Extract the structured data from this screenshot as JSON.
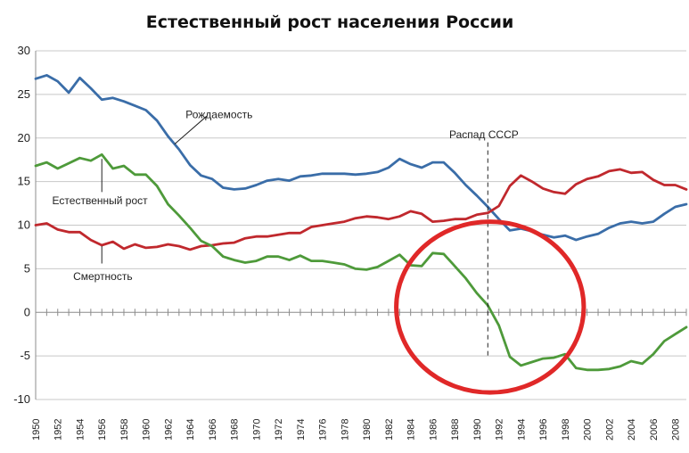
{
  "chart_data": {
    "type": "line",
    "title": "Естественный рост населения России",
    "xlabel": "",
    "ylabel": "",
    "ylim": [
      -10,
      30
    ],
    "yticks": [
      -10,
      -5,
      0,
      5,
      10,
      15,
      20,
      25,
      30
    ],
    "xlim": [
      1950,
      2009
    ],
    "xtick_labels": [
      "1950",
      "1952",
      "1954",
      "1956",
      "1958",
      "1960",
      "1962",
      "1964",
      "1966",
      "1968",
      "1970",
      "1972",
      "1974",
      "1976",
      "1978",
      "1980",
      "1982",
      "1984",
      "1986",
      "1988",
      "1990",
      "1992",
      "1994",
      "1996",
      "1998",
      "2000",
      "2002",
      "2004",
      "2006",
      "2008"
    ],
    "grid": "horizontal",
    "x": [
      1950,
      1951,
      1952,
      1953,
      1954,
      1955,
      1956,
      1957,
      1958,
      1959,
      1960,
      1961,
      1962,
      1963,
      1964,
      1965,
      1966,
      1967,
      1968,
      1969,
      1970,
      1971,
      1972,
      1973,
      1974,
      1975,
      1976,
      1977,
      1978,
      1979,
      1980,
      1981,
      1982,
      1983,
      1984,
      1985,
      1986,
      1987,
      1988,
      1989,
      1990,
      1991,
      1992,
      1993,
      1994,
      1995,
      1996,
      1997,
      1998,
      1999,
      2000,
      2001,
      2002,
      2003,
      2004,
      2005,
      2006,
      2007,
      2008,
      2009
    ],
    "series": [
      {
        "name": "Рождаемость",
        "color": "#3a6da8",
        "values": [
          26.8,
          27.2,
          26.5,
          25.2,
          26.9,
          25.7,
          24.4,
          24.6,
          24.2,
          23.7,
          23.2,
          22.0,
          20.2,
          18.7,
          16.9,
          15.7,
          15.3,
          14.3,
          14.1,
          14.2,
          14.6,
          15.1,
          15.3,
          15.1,
          15.6,
          15.7,
          15.9,
          15.9,
          15.9,
          15.8,
          15.9,
          16.1,
          16.6,
          17.6,
          17.0,
          16.6,
          17.2,
          17.2,
          16.0,
          14.6,
          13.4,
          12.1,
          10.7,
          9.4,
          9.6,
          9.3,
          8.9,
          8.6,
          8.8,
          8.3,
          8.7,
          9.0,
          9.7,
          10.2,
          10.4,
          10.2,
          10.4,
          11.3,
          12.1,
          12.4
        ]
      },
      {
        "name": "Смертность",
        "color": "#c0282d",
        "values": [
          10.0,
          10.2,
          9.5,
          9.2,
          9.2,
          8.3,
          7.7,
          8.1,
          7.3,
          7.8,
          7.4,
          7.5,
          7.8,
          7.6,
          7.2,
          7.6,
          7.7,
          7.9,
          8.0,
          8.5,
          8.7,
          8.7,
          8.9,
          9.1,
          9.1,
          9.8,
          10.0,
          10.2,
          10.4,
          10.8,
          11.0,
          10.9,
          10.7,
          11.0,
          11.6,
          11.3,
          10.4,
          10.5,
          10.7,
          10.7,
          11.2,
          11.4,
          12.2,
          14.5,
          15.7,
          15.0,
          14.2,
          13.8,
          13.6,
          14.7,
          15.3,
          15.6,
          16.2,
          16.4,
          16.0,
          16.1,
          15.2,
          14.6,
          14.6,
          14.1
        ]
      },
      {
        "name": "Естественный рост",
        "color": "#4e9a3a",
        "values": [
          16.8,
          17.2,
          16.5,
          17.1,
          17.7,
          17.4,
          18.1,
          16.5,
          16.8,
          15.8,
          15.8,
          14.5,
          12.4,
          11.1,
          9.7,
          8.2,
          7.6,
          6.4,
          6.0,
          5.7,
          5.9,
          6.4,
          6.4,
          6.0,
          6.5,
          5.9,
          5.9,
          5.7,
          5.5,
          5.0,
          4.9,
          5.2,
          5.9,
          6.6,
          5.4,
          5.3,
          6.8,
          6.7,
          5.3,
          3.9,
          2.2,
          0.8,
          -1.5,
          -5.1,
          -6.1,
          -5.7,
          -5.3,
          -5.2,
          -4.8,
          -6.4,
          -6.6,
          -6.6,
          -6.5,
          -6.2,
          -5.6,
          -5.9,
          -4.8,
          -3.3,
          -2.5,
          -1.7
        ]
      }
    ],
    "annotations": [
      {
        "text": "Рождаемость",
        "x": 1963.6,
        "y": 22.3
      },
      {
        "text": "Естественный рост",
        "x": 1951.5,
        "y": 12.4
      },
      {
        "text": "Смертность",
        "x": 1953.4,
        "y": 3.7
      },
      {
        "text": "Распад СССР",
        "x": 1987.5,
        "y": 20.0
      }
    ],
    "vline": {
      "x": 1991,
      "style": "dashed"
    },
    "highlight": {
      "type": "circle",
      "color": "#e02828",
      "cx": 1991.2,
      "cy": 0.6,
      "rx": 8.5,
      "ry": 9.8
    }
  }
}
